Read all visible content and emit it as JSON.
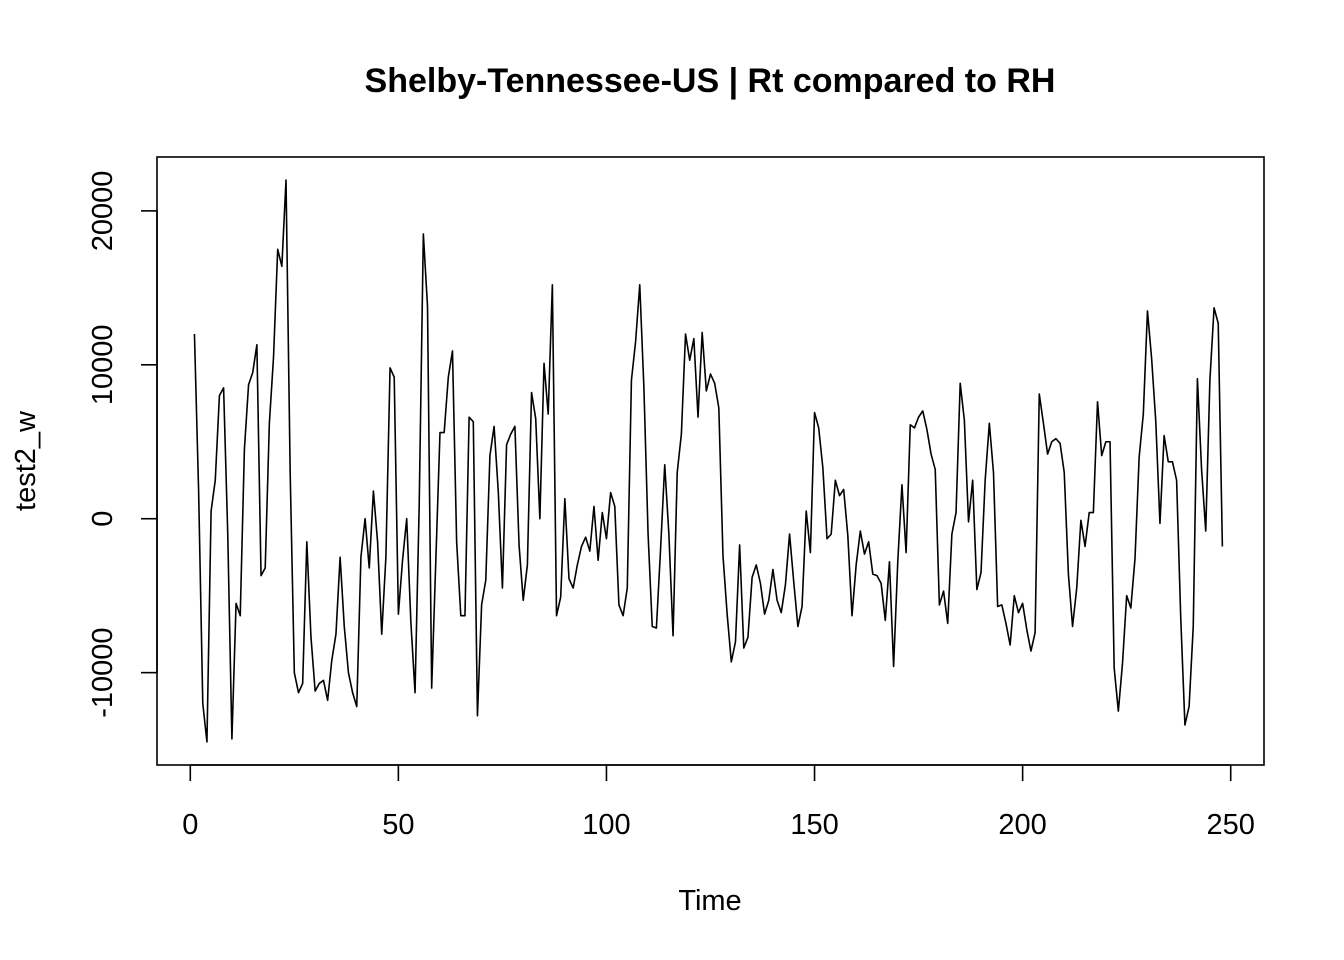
{
  "chart_data": {
    "type": "line",
    "title": "Shelby-Tennessee-US | Rt compared to RH",
    "xlabel": "Time",
    "ylabel": "test2_w",
    "xlim": [
      -8,
      258
    ],
    "ylim": [
      -16000,
      23500
    ],
    "x_ticks": [
      0,
      50,
      100,
      150,
      200,
      250
    ],
    "y_ticks": [
      -10000,
      0,
      10000,
      20000
    ],
    "x_tick_labels": [
      "0",
      "50",
      "100",
      "150",
      "200",
      "250"
    ],
    "y_tick_labels": [
      "-10000",
      "0",
      "10000",
      "20000"
    ],
    "grid": false,
    "legend": "none",
    "line_color": "#000000",
    "series": [
      {
        "x_start": 1,
        "values": [
          12000,
          1800,
          -12000,
          -14500,
          500,
          2500,
          8000,
          8500,
          -1000,
          -14300,
          -5500,
          -6300,
          4500,
          8700,
          9500,
          11300,
          -3700,
          -3200,
          6200,
          10500,
          17500,
          16400,
          22000,
          3000,
          -10000,
          -11300,
          -10700,
          -1500,
          -7700,
          -11200,
          -10700,
          -10500,
          -11800,
          -9200,
          -7500,
          -2500,
          -7000,
          -10000,
          -11300,
          -12200,
          -2500,
          0,
          -3200,
          1800,
          -1500,
          -7500,
          -2500,
          9800,
          9200,
          -6200,
          -2700,
          0,
          -6700,
          -11300,
          800,
          18500,
          13800,
          -11000,
          -2700,
          5600,
          5600,
          9200,
          10900,
          -1500,
          -6300,
          -6300,
          6600,
          6300,
          -12800,
          -5600,
          -4000,
          4100,
          6000,
          1800,
          -4500,
          4800,
          5500,
          6000,
          -1700,
          -5300,
          -3000,
          8200,
          6500,
          0,
          10100,
          6800,
          15200,
          -6300,
          -5100,
          1300,
          -3900,
          -4500,
          -3000,
          -1800,
          -1200,
          -2100,
          800,
          -2700,
          400,
          -1300,
          1700,
          800,
          -5600,
          -6300,
          -4500,
          9000,
          11500,
          15200,
          8500,
          -1000,
          -7000,
          -7100,
          -2000,
          3500,
          -1000,
          -7600,
          3000,
          5500,
          12000,
          10300,
          11700,
          6600,
          12100,
          8300,
          9400,
          8800,
          7200,
          -2400,
          -6200,
          -9300,
          -8000,
          -1700,
          -8400,
          -7700,
          -3800,
          -3000,
          -4200,
          -6200,
          -5300,
          -3300,
          -5300,
          -6100,
          -4300,
          -1000,
          -4100,
          -7000,
          -5700,
          500,
          -2200,
          6900,
          5900,
          3300,
          -1300,
          -1000,
          2500,
          1500,
          1900,
          -1100,
          -6300,
          -3000,
          -800,
          -2300,
          -1500,
          -3600,
          -3700,
          -4200,
          -6600,
          -2800,
          -9600,
          -2800,
          2200,
          -2200,
          6100,
          5900,
          6600,
          7000,
          5800,
          4200,
          3200,
          -5600,
          -4700,
          -6800,
          -1000,
          400,
          8800,
          6400,
          -200,
          2500,
          -4600,
          -3500,
          2500,
          6200,
          3000,
          -5700,
          -5600,
          -6800,
          -8200,
          -5000,
          -6100,
          -5500,
          -7200,
          -8600,
          -7400,
          8100,
          6200,
          4200,
          5000,
          5200,
          4900,
          3000,
          -3600,
          -7000,
          -4500,
          -100,
          -1800,
          400,
          400,
          7600,
          4100,
          5000,
          5000,
          -9700,
          -12500,
          -9400,
          -5000,
          -5800,
          -2600,
          4000,
          6800,
          13500,
          10400,
          6300,
          -300,
          5400,
          3700,
          3700,
          2500,
          -6500,
          -13400,
          -12200,
          -7000,
          9100,
          3200,
          -800,
          9000,
          13700,
          12700,
          -1800
        ]
      }
    ]
  }
}
